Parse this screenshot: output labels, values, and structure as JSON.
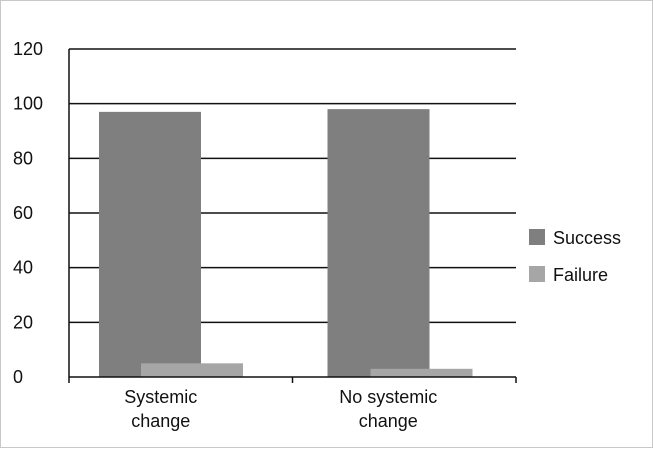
{
  "chart_data": {
    "type": "bar",
    "title": "",
    "xlabel": "",
    "ylabel": "",
    "categories": [
      [
        "Systemic",
        "change"
      ],
      [
        "No systemic",
        "change"
      ]
    ],
    "series": [
      {
        "name": "Success",
        "color": "#7f7f7f",
        "values": [
          97,
          98
        ]
      },
      {
        "name": "Failure",
        "color": "#a6a6a6",
        "values": [
          5,
          3
        ]
      }
    ],
    "ylim": [
      0,
      120
    ],
    "yticks": [
      "0",
      "20",
      "40",
      "60",
      "80",
      "100",
      "120"
    ],
    "grid": true,
    "legend_position": "right"
  }
}
